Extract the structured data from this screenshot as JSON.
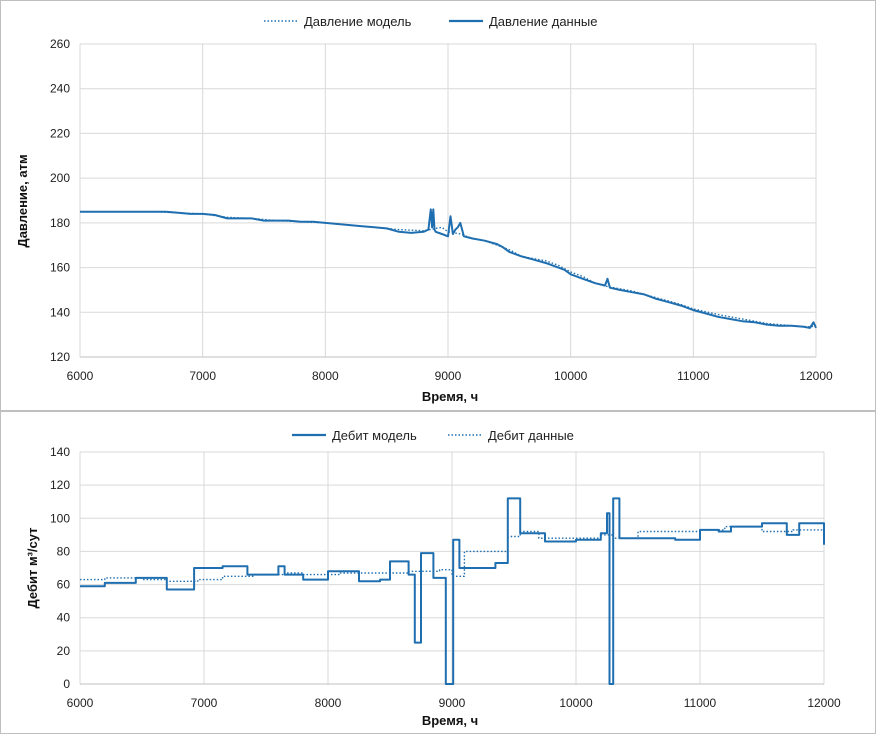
{
  "colors": {
    "series": "#1f6fb0",
    "grid": "#d9d9d9",
    "frame": "#bfbfbf"
  },
  "chart_data": [
    {
      "type": "line",
      "title": "",
      "xlabel": "Время, ч",
      "ylabel": "Давление,  атм",
      "xlim": [
        6000,
        12000
      ],
      "ylim": [
        120,
        260
      ],
      "x_ticks": [
        "6000",
        "7000",
        "8000",
        "9000",
        "10000",
        "11000",
        "12000"
      ],
      "y_ticks": [
        "120",
        "140",
        "160",
        "180",
        "200",
        "220",
        "240",
        "260"
      ],
      "grid": true,
      "legend": "top",
      "series": [
        {
          "name": "Давление модель",
          "style": "dotted",
          "x": [
            6000,
            6100,
            6200,
            6400,
            6600,
            6800,
            7000,
            7200,
            7400,
            7600,
            7800,
            8000,
            8200,
            8400,
            8600,
            8800,
            8950,
            9000,
            9100,
            9200,
            9300,
            9400,
            9500,
            9600,
            9700,
            9800,
            9900,
            10000,
            10100,
            10200,
            10300,
            10400,
            10500,
            10600,
            10700,
            10800,
            10900,
            11000,
            11200,
            11400,
            11600,
            11800,
            11950,
            12000
          ],
          "y": [
            185,
            185,
            185,
            185,
            185,
            184.5,
            184,
            182.5,
            182,
            181,
            180.5,
            180,
            179,
            178,
            177,
            176.5,
            178,
            176,
            175,
            173,
            172,
            170,
            168,
            165,
            164,
            163,
            161,
            158,
            156,
            153,
            151.5,
            150.5,
            149.5,
            148,
            146.5,
            145,
            143.5,
            141.5,
            139,
            137,
            135,
            134,
            133.5,
            134
          ]
        },
        {
          "name": "Давление данные",
          "style": "solid",
          "x": [
            6000,
            6100,
            6200,
            6300,
            6400,
            6500,
            6600,
            6700,
            6800,
            6900,
            7000,
            7100,
            7200,
            7300,
            7400,
            7500,
            7600,
            7700,
            7800,
            7900,
            8000,
            8100,
            8200,
            8300,
            8400,
            8500,
            8600,
            8700,
            8800,
            8840,
            8860,
            8870,
            8880,
            8890,
            8900,
            8950,
            9000,
            9020,
            9040,
            9060,
            9080,
            9100,
            9130,
            9200,
            9300,
            9400,
            9450,
            9500,
            9600,
            9700,
            9800,
            9900,
            9950,
            10000,
            10100,
            10200,
            10280,
            10300,
            10320,
            10400,
            10500,
            10600,
            10700,
            10800,
            10900,
            11000,
            11100,
            11200,
            11300,
            11400,
            11500,
            11600,
            11700,
            11800,
            11900,
            11950,
            11980,
            12000
          ],
          "y": [
            185,
            185,
            185,
            185,
            185,
            185,
            185,
            185,
            184.5,
            184,
            184,
            183.5,
            182,
            182,
            182,
            181,
            181,
            181,
            180.5,
            180.5,
            180,
            179.5,
            179,
            178.5,
            178,
            177.5,
            176,
            175.5,
            176,
            177,
            186,
            178,
            186,
            177,
            176,
            175,
            174,
            183,
            175,
            177,
            178,
            180,
            174,
            173,
            172,
            170.5,
            169,
            167,
            165,
            163.5,
            162,
            160,
            159,
            157,
            155,
            153,
            152,
            155,
            151,
            150,
            149,
            148,
            146,
            144.5,
            143,
            141,
            139.5,
            138,
            137,
            136,
            135.5,
            134.5,
            134,
            134,
            133.5,
            133,
            135.5,
            133
          ]
        }
      ]
    },
    {
      "type": "line",
      "title": "",
      "xlabel": "Время, ч",
      "ylabel": "Дебит  м³/сут",
      "xlim": [
        6000,
        12000
      ],
      "ylim": [
        0,
        140
      ],
      "x_ticks": [
        "6000",
        "7000",
        "8000",
        "9000",
        "10000",
        "11000",
        "12000"
      ],
      "y_ticks": [
        "0",
        "20",
        "40",
        "60",
        "80",
        "100",
        "120",
        "140"
      ],
      "grid": true,
      "legend": "top",
      "series": [
        {
          "name": "Дебит модель",
          "style": "solid",
          "step": true,
          "x": [
            6000,
            6200,
            6450,
            6700,
            6920,
            7150,
            7350,
            7600,
            7650,
            7800,
            8000,
            8250,
            8420,
            8500,
            8650,
            8700,
            8750,
            8850,
            8950,
            9010,
            9060,
            9100,
            9350,
            9450,
            9550,
            9750,
            10000,
            10200,
            10250,
            10270,
            10300,
            10350,
            10600,
            10800,
            11000,
            11150,
            11250,
            11500,
            11700,
            11800,
            12000
          ],
          "y": [
            59,
            61,
            64,
            57,
            70,
            71,
            66,
            71,
            66,
            63,
            68,
            62,
            63,
            74,
            66,
            25,
            79,
            64,
            0,
            87,
            70,
            70,
            73,
            112,
            91,
            86,
            87,
            91,
            103,
            0,
            112,
            88,
            88,
            87,
            93,
            92,
            95,
            97,
            90,
            97,
            84
          ]
        },
        {
          "name": "Дебит данные",
          "style": "dotted",
          "step": true,
          "x": [
            6000,
            6200,
            6500,
            6700,
            6950,
            7150,
            7400,
            7650,
            7800,
            8100,
            8400,
            8650,
            8750,
            8900,
            9000,
            9100,
            9450,
            9550,
            9700,
            10000,
            10200,
            10300,
            10500,
            10800,
            11000,
            11200,
            11500,
            11750,
            12000
          ],
          "y": [
            63,
            64,
            63,
            62,
            63,
            65,
            66,
            67,
            66,
            67,
            67,
            68,
            68,
            69,
            65,
            80,
            89,
            92,
            88,
            88,
            90,
            88,
            92,
            92,
            93,
            95,
            92,
            93,
            93
          ]
        }
      ]
    }
  ]
}
